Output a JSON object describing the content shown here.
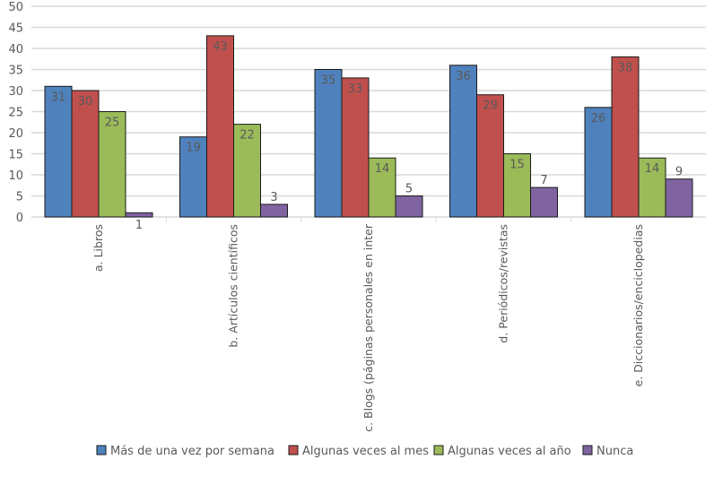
{
  "chart_data": {
    "type": "bar",
    "title": "",
    "xlabel": "",
    "ylabel": "",
    "ylim": [
      0,
      50
    ],
    "yticks": [
      0,
      5,
      10,
      15,
      20,
      25,
      30,
      35,
      40,
      45,
      50
    ],
    "grid": true,
    "legend_position": "bottom",
    "categories": [
      "a. Libros",
      "b. Artículos científicos",
      "c. Blogs (páginas personales en inter",
      "d. Periódicos/revistas",
      "e. Diccionarios/enciclopedias"
    ],
    "series": [
      {
        "name": "Más de una vez por semana",
        "color": "#4F81BD",
        "values": [
          31,
          19,
          35,
          36,
          26
        ]
      },
      {
        "name": "Algunas veces al mes",
        "color": "#C0504D",
        "values": [
          30,
          43,
          33,
          29,
          38
        ]
      },
      {
        "name": "Algunas veces al año",
        "color": "#9BBB59",
        "values": [
          25,
          22,
          14,
          15,
          14
        ]
      },
      {
        "name": "Nunca",
        "color": "#8064A2",
        "values": [
          1,
          3,
          5,
          7,
          9
        ]
      }
    ]
  }
}
